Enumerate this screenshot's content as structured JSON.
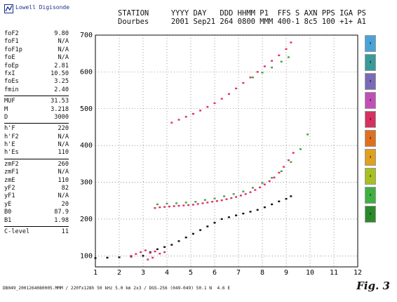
{
  "logo": {
    "text": "Lowell Digisonde"
  },
  "header": {
    "line1": "STATION     YYYY DAY   DDD HHMM P1  FFS S AXN PPS IGA PS",
    "line2": "Dourbes     2001 Sep21 264 0800 MMM 400-1 8c5 100 +1+ A1"
  },
  "params": {
    "group1": [
      {
        "k": "foF2",
        "v": "9.80"
      },
      {
        "k": "foF1",
        "v": "N/A"
      },
      {
        "k": "foF1p",
        "v": "N/A"
      },
      {
        "k": "foE",
        "v": "N/A"
      },
      {
        "k": "foEp",
        "v": "2.81"
      },
      {
        "k": "fxI",
        "v": "10.50"
      },
      {
        "k": "foEs",
        "v": "3.25"
      },
      {
        "k": "fmin",
        "v": "2.40"
      }
    ],
    "group2": [
      {
        "k": "MUF",
        "v": "31.53"
      },
      {
        "k": "M",
        "v": "3.218"
      },
      {
        "k": "D",
        "v": "3000"
      }
    ],
    "group3": [
      {
        "k": "h'F",
        "v": "220"
      },
      {
        "k": "h'F2",
        "v": "N/A"
      },
      {
        "k": "h'E",
        "v": "N/A"
      },
      {
        "k": "h'Es",
        "v": "110"
      }
    ],
    "group4": [
      {
        "k": "zmF2",
        "v": "260"
      },
      {
        "k": "zmF1",
        "v": "N/A"
      },
      {
        "k": "zmE",
        "v": "110"
      },
      {
        "k": "yF2",
        "v": "82"
      },
      {
        "k": "yF1",
        "v": "N/A"
      },
      {
        "k": "yE",
        "v": "20"
      },
      {
        "k": "B0",
        "v": "87.9"
      },
      {
        "k": "B1",
        "v": "1.98"
      }
    ],
    "group5": [
      {
        "k": "C-level",
        "v": "11"
      }
    ]
  },
  "footer": "DB049_2001264080005.MMM / 220fx128h 50 kHz 5.0 km 2x3 / DGS-256 (049-049) 50.1 N  4.6 E",
  "figure_label": "Fig. 3",
  "buttons": [
    {
      "icon": "o-mode-icon",
      "color": "#4aa3d8"
    },
    {
      "icon": "x-mode-icon",
      "color": "#3a9a9a"
    },
    {
      "icon": "mode-3-icon",
      "color": "#7a6ab8"
    },
    {
      "icon": "mode-4-icon",
      "color": "#c050b8"
    },
    {
      "icon": "mode-5-icon",
      "color": "#d83060"
    },
    {
      "icon": "ch-a-icon",
      "color": "#e07020"
    },
    {
      "icon": "ch-b-icon",
      "color": "#e0a020"
    },
    {
      "icon": "ch-c-icon",
      "color": "#a8c020"
    },
    {
      "icon": "ch-d-icon",
      "color": "#40b040"
    },
    {
      "icon": "ch-e-icon",
      "color": "#2a8a2a"
    }
  ],
  "chart_data": {
    "type": "scatter",
    "title": "",
    "xlabel": "",
    "ylabel": "",
    "xlim": [
      1,
      12
    ],
    "ylim": [
      70,
      700
    ],
    "xticks": [
      "1",
      "2",
      "3",
      "4",
      "5",
      "6",
      "7",
      "8",
      "9",
      "10",
      "11",
      "12"
    ],
    "yticks": [
      "100",
      "200",
      "300",
      "400",
      "500",
      "600",
      "700"
    ],
    "grid": true,
    "series": [
      {
        "color": "#e0306a",
        "points": [
          [
            3.5,
            230
          ],
          [
            3.7,
            232
          ],
          [
            3.9,
            233
          ],
          [
            4.1,
            234
          ],
          [
            4.3,
            235
          ],
          [
            4.5,
            236
          ],
          [
            4.7,
            237
          ],
          [
            4.9,
            238
          ],
          [
            5.1,
            239
          ],
          [
            5.3,
            241
          ],
          [
            5.5,
            243
          ],
          [
            5.7,
            245
          ],
          [
            5.9,
            247
          ],
          [
            6.1,
            249
          ],
          [
            6.3,
            251
          ],
          [
            6.5,
            254
          ],
          [
            6.7,
            257
          ],
          [
            6.9,
            260
          ],
          [
            7.1,
            264
          ],
          [
            7.3,
            268
          ],
          [
            7.5,
            273
          ],
          [
            7.7,
            279
          ],
          [
            7.9,
            286
          ],
          [
            8.1,
            294
          ],
          [
            8.3,
            303
          ],
          [
            8.5,
            313
          ],
          [
            8.7,
            326
          ],
          [
            8.9,
            342
          ],
          [
            9.1,
            360
          ],
          [
            9.3,
            380
          ],
          [
            4.2,
            462
          ],
          [
            4.5,
            470
          ],
          [
            4.8,
            478
          ],
          [
            5.1,
            486
          ],
          [
            5.4,
            495
          ],
          [
            5.7,
            505
          ],
          [
            6.0,
            515
          ],
          [
            6.3,
            527
          ],
          [
            6.6,
            540
          ],
          [
            6.9,
            555
          ],
          [
            7.2,
            570
          ],
          [
            7.5,
            585
          ],
          [
            7.8,
            600
          ],
          [
            8.1,
            615
          ],
          [
            8.4,
            630
          ],
          [
            8.7,
            645
          ],
          [
            9.0,
            662
          ],
          [
            9.2,
            680
          ]
        ]
      },
      {
        "color": "#3aaa3a",
        "points": [
          [
            3.6,
            240
          ],
          [
            4.0,
            242
          ],
          [
            4.4,
            243
          ],
          [
            4.8,
            245
          ],
          [
            5.2,
            247
          ],
          [
            5.6,
            252
          ],
          [
            6.0,
            256
          ],
          [
            6.4,
            262
          ],
          [
            6.8,
            268
          ],
          [
            7.2,
            275
          ],
          [
            7.6,
            285
          ],
          [
            8.0,
            298
          ],
          [
            8.4,
            312
          ],
          [
            8.8,
            330
          ],
          [
            9.2,
            355
          ],
          [
            9.6,
            390
          ],
          [
            9.9,
            430
          ],
          [
            7.6,
            585
          ],
          [
            8.0,
            598
          ],
          [
            8.4,
            612
          ],
          [
            8.8,
            628
          ],
          [
            9.1,
            640
          ]
        ]
      },
      {
        "color": "#111111",
        "points": [
          [
            1.0,
            94
          ],
          [
            1.5,
            95
          ],
          [
            2.0,
            96
          ],
          [
            2.5,
            98
          ],
          [
            3.0,
            100
          ],
          [
            3.3,
            110
          ],
          [
            3.6,
            118
          ],
          [
            3.9,
            124
          ],
          [
            4.2,
            130
          ],
          [
            4.5,
            140
          ],
          [
            4.8,
            150
          ],
          [
            5.1,
            160
          ],
          [
            5.4,
            170
          ],
          [
            5.7,
            180
          ],
          [
            6.0,
            190
          ],
          [
            6.3,
            200
          ],
          [
            6.6,
            205
          ],
          [
            6.9,
            210
          ],
          [
            7.2,
            215
          ],
          [
            7.5,
            220
          ],
          [
            7.8,
            225
          ],
          [
            8.1,
            232
          ],
          [
            8.4,
            240
          ],
          [
            8.7,
            248
          ],
          [
            9.0,
            255
          ],
          [
            9.2,
            262
          ]
        ]
      },
      {
        "color": "#e0306a",
        "points": [
          [
            2.5,
            100
          ],
          [
            2.7,
            105
          ],
          [
            2.9,
            110
          ],
          [
            3.1,
            115
          ],
          [
            3.3,
            108
          ],
          [
            3.5,
            112
          ],
          [
            3.7,
            106
          ],
          [
            3.9,
            110
          ],
          [
            3.2,
            90
          ],
          [
            3.4,
            95
          ]
        ]
      }
    ]
  }
}
